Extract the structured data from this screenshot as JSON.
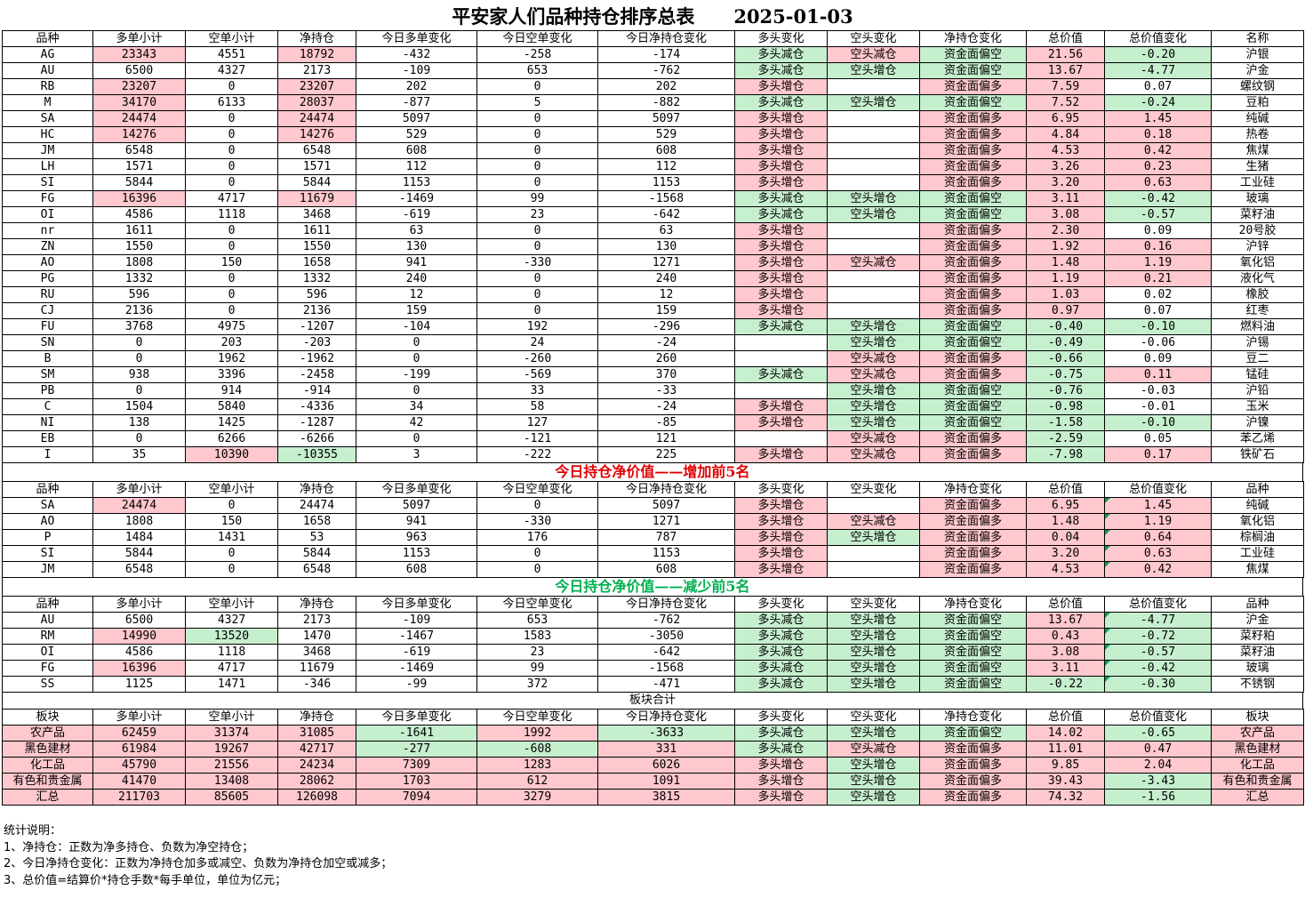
{
  "title": "平安家人们品种持仓排序总表",
  "date": "2025-01-03",
  "headers": [
    "品种",
    "多单小计",
    "空单小计",
    "净持仓",
    "今日多单变化",
    "今日空单变化",
    "今日净持仓变化",
    "多头变化",
    "空头变化",
    "净持仓变化",
    "总价值",
    "总价值变化",
    "名称"
  ],
  "headers_top": [
    "品种",
    "多单小计",
    "空单小计",
    "净持仓",
    "今日多单变化",
    "今日空单变化",
    "今日净持仓变化",
    "多头变化",
    "空头变化",
    "净持仓变化",
    "总价值",
    "总价值变化",
    "品种"
  ],
  "headers_block": [
    "板块",
    "多单小计",
    "空单小计",
    "净持仓",
    "今日多单变化",
    "今日空单变化",
    "今日净持仓变化",
    "多头变化",
    "空头变化",
    "净持仓变化",
    "总价值",
    "总价值变化",
    "板块"
  ],
  "colors": {
    "pink": "#ffc7ce",
    "green": "#c6efce",
    "red_title": "#e00000",
    "green_title": "#00b050"
  },
  "main_rows": [
    [
      "AG",
      "23343",
      "4551",
      "18792",
      "-432",
      "-258",
      "-174",
      "多头减仓",
      "空头减仓",
      "资金面偏空",
      "21.56",
      "-0.20",
      "沪银"
    ],
    [
      "AU",
      "6500",
      "4327",
      "2173",
      "-109",
      "653",
      "-762",
      "多头减仓",
      "空头增仓",
      "资金面偏空",
      "13.67",
      "-4.77",
      "沪金"
    ],
    [
      "RB",
      "23207",
      "0",
      "23207",
      "202",
      "0",
      "202",
      "多头增仓",
      "",
      "资金面偏多",
      "7.59",
      "0.07",
      "螺纹钢"
    ],
    [
      "M",
      "34170",
      "6133",
      "28037",
      "-877",
      "5",
      "-882",
      "多头减仓",
      "空头增仓",
      "资金面偏空",
      "7.52",
      "-0.24",
      "豆粕"
    ],
    [
      "SA",
      "24474",
      "0",
      "24474",
      "5097",
      "0",
      "5097",
      "多头增仓",
      "",
      "资金面偏多",
      "6.95",
      "1.45",
      "纯碱"
    ],
    [
      "HC",
      "14276",
      "0",
      "14276",
      "529",
      "0",
      "529",
      "多头增仓",
      "",
      "资金面偏多",
      "4.84",
      "0.18",
      "热卷"
    ],
    [
      "JM",
      "6548",
      "0",
      "6548",
      "608",
      "0",
      "608",
      "多头增仓",
      "",
      "资金面偏多",
      "4.53",
      "0.42",
      "焦煤"
    ],
    [
      "LH",
      "1571",
      "0",
      "1571",
      "112",
      "0",
      "112",
      "多头增仓",
      "",
      "资金面偏多",
      "3.26",
      "0.23",
      "生猪"
    ],
    [
      "SI",
      "5844",
      "0",
      "5844",
      "1153",
      "0",
      "1153",
      "多头增仓",
      "",
      "资金面偏多",
      "3.20",
      "0.63",
      "工业硅"
    ],
    [
      "FG",
      "16396",
      "4717",
      "11679",
      "-1469",
      "99",
      "-1568",
      "多头减仓",
      "空头增仓",
      "资金面偏空",
      "3.11",
      "-0.42",
      "玻璃"
    ],
    [
      "OI",
      "4586",
      "1118",
      "3468",
      "-619",
      "23",
      "-642",
      "多头减仓",
      "空头增仓",
      "资金面偏空",
      "3.08",
      "-0.57",
      "菜籽油"
    ],
    [
      "nr",
      "1611",
      "0",
      "1611",
      "63",
      "0",
      "63",
      "多头增仓",
      "",
      "资金面偏多",
      "2.30",
      "0.09",
      "20号胶"
    ],
    [
      "ZN",
      "1550",
      "0",
      "1550",
      "130",
      "0",
      "130",
      "多头增仓",
      "",
      "资金面偏多",
      "1.92",
      "0.16",
      "沪锌"
    ],
    [
      "AO",
      "1808",
      "150",
      "1658",
      "941",
      "-330",
      "1271",
      "多头增仓",
      "空头减仓",
      "资金面偏多",
      "1.48",
      "1.19",
      "氧化铝"
    ],
    [
      "PG",
      "1332",
      "0",
      "1332",
      "240",
      "0",
      "240",
      "多头增仓",
      "",
      "资金面偏多",
      "1.19",
      "0.21",
      "液化气"
    ],
    [
      "RU",
      "596",
      "0",
      "596",
      "12",
      "0",
      "12",
      "多头增仓",
      "",
      "资金面偏多",
      "1.03",
      "0.02",
      "橡胶"
    ],
    [
      "CJ",
      "2136",
      "0",
      "2136",
      "159",
      "0",
      "159",
      "多头增仓",
      "",
      "资金面偏多",
      "0.97",
      "0.07",
      "红枣"
    ],
    [
      "FU",
      "3768",
      "4975",
      "-1207",
      "-104",
      "192",
      "-296",
      "多头减仓",
      "空头增仓",
      "资金面偏空",
      "-0.40",
      "-0.10",
      "燃料油"
    ],
    [
      "SN",
      "0",
      "203",
      "-203",
      "0",
      "24",
      "-24",
      "",
      "空头增仓",
      "资金面偏空",
      "-0.49",
      "-0.06",
      "沪锡"
    ],
    [
      "B",
      "0",
      "1962",
      "-1962",
      "0",
      "-260",
      "260",
      "",
      "空头减仓",
      "资金面偏多",
      "-0.66",
      "0.09",
      "豆二"
    ],
    [
      "SM",
      "938",
      "3396",
      "-2458",
      "-199",
      "-569",
      "370",
      "多头减仓",
      "空头减仓",
      "资金面偏多",
      "-0.75",
      "0.11",
      "锰硅"
    ],
    [
      "PB",
      "0",
      "914",
      "-914",
      "0",
      "33",
      "-33",
      "",
      "空头增仓",
      "资金面偏空",
      "-0.76",
      "-0.03",
      "沪铅"
    ],
    [
      "C",
      "1504",
      "5840",
      "-4336",
      "34",
      "58",
      "-24",
      "多头增仓",
      "空头增仓",
      "资金面偏空",
      "-0.98",
      "-0.01",
      "玉米"
    ],
    [
      "NI",
      "138",
      "1425",
      "-1287",
      "42",
      "127",
      "-85",
      "多头增仓",
      "空头增仓",
      "资金面偏空",
      "-1.58",
      "-0.10",
      "沪镍"
    ],
    [
      "EB",
      "0",
      "6266",
      "-6266",
      "0",
      "-121",
      "121",
      "",
      "空头减仓",
      "资金面偏多",
      "-2.59",
      "0.05",
      "苯乙烯"
    ],
    [
      "I",
      "35",
      "10390",
      "-10355",
      "3",
      "-222",
      "225",
      "多头增仓",
      "空头减仓",
      "资金面偏多",
      "-7.98",
      "0.17",
      "铁矿石"
    ]
  ],
  "inc_title": "今日持仓净价值——增加前5名",
  "inc_rows": [
    [
      "SA",
      "24474",
      "0",
      "24474",
      "5097",
      "0",
      "5097",
      "多头增仓",
      "",
      "资金面偏多",
      "6.95",
      "1.45",
      "纯碱"
    ],
    [
      "AO",
      "1808",
      "150",
      "1658",
      "941",
      "-330",
      "1271",
      "多头增仓",
      "空头减仓",
      "资金面偏多",
      "1.48",
      "1.19",
      "氧化铝"
    ],
    [
      "P",
      "1484",
      "1431",
      "53",
      "963",
      "176",
      "787",
      "多头增仓",
      "空头增仓",
      "资金面偏多",
      "0.04",
      "0.64",
      "棕榈油"
    ],
    [
      "SI",
      "5844",
      "0",
      "5844",
      "1153",
      "0",
      "1153",
      "多头增仓",
      "",
      "资金面偏多",
      "3.20",
      "0.63",
      "工业硅"
    ],
    [
      "JM",
      "6548",
      "0",
      "6548",
      "608",
      "0",
      "608",
      "多头增仓",
      "",
      "资金面偏多",
      "4.53",
      "0.42",
      "焦煤"
    ]
  ],
  "dec_title": "今日持仓净价值——减少前5名",
  "dec_rows": [
    [
      "AU",
      "6500",
      "4327",
      "2173",
      "-109",
      "653",
      "-762",
      "多头减仓",
      "空头增仓",
      "资金面偏空",
      "13.67",
      "-4.77",
      "沪金"
    ],
    [
      "RM",
      "14990",
      "13520",
      "1470",
      "-1467",
      "1583",
      "-3050",
      "多头减仓",
      "空头增仓",
      "资金面偏空",
      "0.43",
      "-0.72",
      "菜籽粕"
    ],
    [
      "OI",
      "4586",
      "1118",
      "3468",
      "-619",
      "23",
      "-642",
      "多头减仓",
      "空头增仓",
      "资金面偏空",
      "3.08",
      "-0.57",
      "菜籽油"
    ],
    [
      "FG",
      "16396",
      "4717",
      "11679",
      "-1469",
      "99",
      "-1568",
      "多头减仓",
      "空头增仓",
      "资金面偏空",
      "3.11",
      "-0.42",
      "玻璃"
    ],
    [
      "SS",
      "1125",
      "1471",
      "-346",
      "-99",
      "372",
      "-471",
      "多头减仓",
      "空头增仓",
      "资金面偏空",
      "-0.22",
      "-0.30",
      "不锈钢"
    ]
  ],
  "block_title": "板块合计",
  "block_rows": [
    [
      "农产品",
      "62459",
      "31374",
      "31085",
      "-1641",
      "1992",
      "-3633",
      "多头减仓",
      "空头增仓",
      "资金面偏空",
      "14.02",
      "-0.65",
      "农产品"
    ],
    [
      "黑色建材",
      "61984",
      "19267",
      "42717",
      "-277",
      "-608",
      "331",
      "多头减仓",
      "空头减仓",
      "资金面偏多",
      "11.01",
      "0.47",
      "黑色建材"
    ],
    [
      "化工品",
      "45790",
      "21556",
      "24234",
      "7309",
      "1283",
      "6026",
      "多头增仓",
      "空头增仓",
      "资金面偏多",
      "9.85",
      "2.04",
      "化工品"
    ],
    [
      "有色和贵金属",
      "41470",
      "13408",
      "28062",
      "1703",
      "612",
      "1091",
      "多头增仓",
      "空头增仓",
      "资金面偏多",
      "39.43",
      "-3.43",
      "有色和贵金属"
    ],
    [
      "汇总",
      "211703",
      "85605",
      "126098",
      "7094",
      "3279",
      "3815",
      "多头增仓",
      "空头增仓",
      "资金面偏多",
      "74.32",
      "-1.56",
      "汇总"
    ]
  ],
  "notes": [
    "统计说明：",
    "1、净持仓：正数为净多持仓、负数为净空持仓；",
    "2、今日净持仓变化：正数为净持仓加多或减空、负数为净持仓加空或减多；",
    "3、总价值=结算价*持仓手数*每手单位，单位为亿元；"
  ]
}
